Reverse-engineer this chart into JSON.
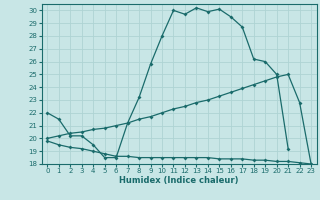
{
  "xlabel": "Humidex (Indice chaleur)",
  "xlim": [
    -0.5,
    23.5
  ],
  "ylim": [
    18,
    30.5
  ],
  "yticks": [
    18,
    19,
    20,
    21,
    22,
    23,
    24,
    25,
    26,
    27,
    28,
    29,
    30
  ],
  "xticks": [
    0,
    1,
    2,
    3,
    4,
    5,
    6,
    7,
    8,
    9,
    10,
    11,
    12,
    13,
    14,
    15,
    16,
    17,
    18,
    19,
    20,
    21,
    22,
    23
  ],
  "bg_color": "#c8e6e6",
  "line_color": "#1a6b6b",
  "grid_color": "#aed4d4",
  "curve1_x": [
    0,
    1,
    2,
    3,
    4,
    5,
    6,
    7,
    8,
    9,
    10,
    11,
    12,
    13,
    14,
    15,
    16,
    17,
    18,
    19,
    20,
    21
  ],
  "curve1_y": [
    22.0,
    21.5,
    20.2,
    20.2,
    19.5,
    18.5,
    18.5,
    21.2,
    23.2,
    25.8,
    28.0,
    30.0,
    29.7,
    30.2,
    29.9,
    30.1,
    29.5,
    28.7,
    26.2,
    26.0,
    25.0,
    19.2
  ],
  "curve2_x": [
    0,
    1,
    2,
    3,
    4,
    5,
    6,
    7,
    8,
    9,
    10,
    11,
    12,
    13,
    14,
    15,
    16,
    17,
    18,
    19,
    20,
    21,
    22,
    23
  ],
  "curve2_y": [
    20.0,
    20.2,
    20.4,
    20.5,
    20.7,
    20.8,
    21.0,
    21.2,
    21.5,
    21.7,
    22.0,
    22.3,
    22.5,
    22.8,
    23.0,
    23.3,
    23.6,
    23.9,
    24.2,
    24.5,
    24.8,
    25.0,
    22.8,
    18.0
  ],
  "curve3_x": [
    0,
    1,
    2,
    3,
    4,
    5,
    6,
    7,
    8,
    9,
    10,
    11,
    12,
    13,
    14,
    15,
    16,
    17,
    18,
    19,
    20,
    21,
    22,
    23
  ],
  "curve3_y": [
    19.8,
    19.5,
    19.3,
    19.2,
    19.0,
    18.8,
    18.6,
    18.6,
    18.5,
    18.5,
    18.5,
    18.5,
    18.5,
    18.5,
    18.5,
    18.4,
    18.4,
    18.4,
    18.3,
    18.3,
    18.2,
    18.2,
    18.1,
    18.0
  ]
}
